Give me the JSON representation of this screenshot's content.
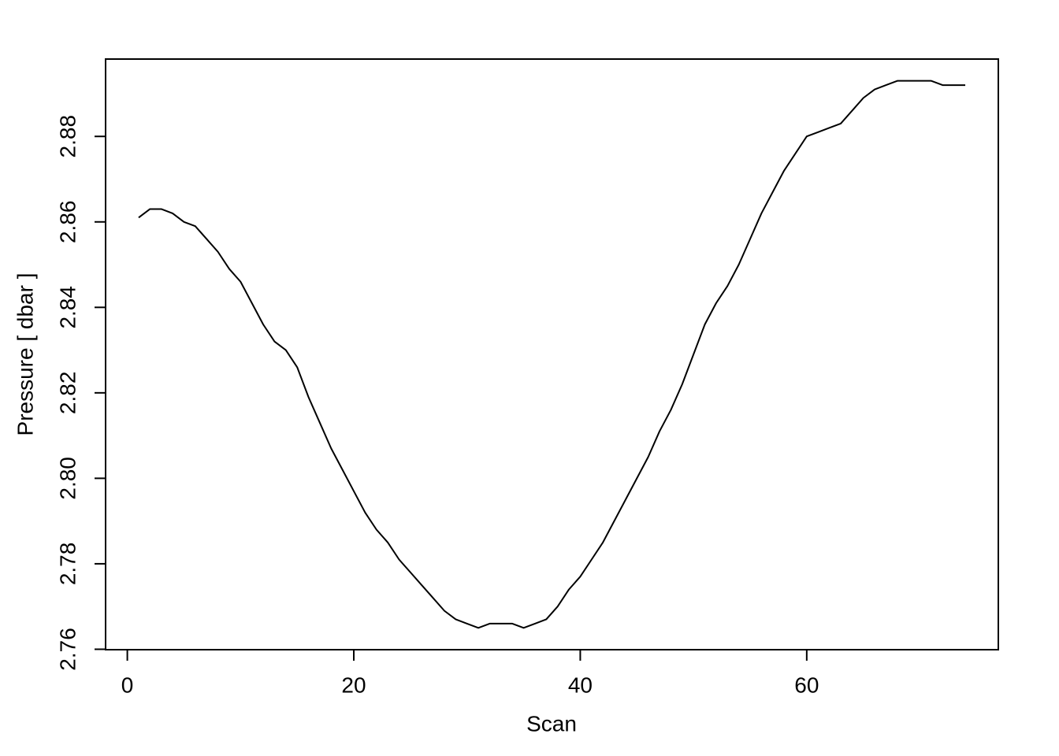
{
  "chart_data": {
    "type": "line",
    "xlabel": "Scan",
    "ylabel": "Pressure [ dbar ]",
    "x": [
      1,
      2,
      3,
      4,
      5,
      6,
      7,
      8,
      9,
      10,
      11,
      12,
      13,
      14,
      15,
      16,
      17,
      18,
      19,
      20,
      21,
      22,
      23,
      24,
      25,
      26,
      27,
      28,
      29,
      30,
      31,
      32,
      33,
      34,
      35,
      36,
      37,
      38,
      39,
      40,
      41,
      42,
      43,
      44,
      45,
      46,
      47,
      48,
      49,
      50,
      51,
      52,
      53,
      54,
      55,
      56,
      57,
      58,
      59,
      60,
      61,
      62,
      63,
      64,
      65,
      66,
      67,
      68,
      69,
      70,
      71,
      72,
      73,
      74
    ],
    "y": [
      2.861,
      2.863,
      2.863,
      2.862,
      2.86,
      2.859,
      2.856,
      2.853,
      2.849,
      2.846,
      2.841,
      2.836,
      2.832,
      2.83,
      2.826,
      2.819,
      2.813,
      2.807,
      2.802,
      2.797,
      2.792,
      2.788,
      2.785,
      2.781,
      2.778,
      2.775,
      2.772,
      2.769,
      2.767,
      2.766,
      2.765,
      2.766,
      2.766,
      2.766,
      2.765,
      2.766,
      2.767,
      2.77,
      2.774,
      2.777,
      2.781,
      2.785,
      2.79,
      2.795,
      2.8,
      2.805,
      2.811,
      2.816,
      2.822,
      2.829,
      2.836,
      2.841,
      2.845,
      2.85,
      2.856,
      2.862,
      2.867,
      2.872,
      2.876,
      2.88,
      2.881,
      2.882,
      2.883,
      2.886,
      2.889,
      2.891,
      2.892,
      2.893,
      2.893,
      2.893,
      2.893,
      2.892,
      2.892,
      2.892
    ],
    "color": "#000000",
    "xlim": [
      -1.92,
      76.92
    ],
    "ylim": [
      2.7599,
      2.8981
    ],
    "xticks": [
      0,
      20,
      40,
      60
    ],
    "yticks": [
      2.76,
      2.78,
      {
        "value": 2.8,
        "label": "2.80"
      },
      2.82,
      2.84,
      2.86,
      2.88
    ]
  }
}
